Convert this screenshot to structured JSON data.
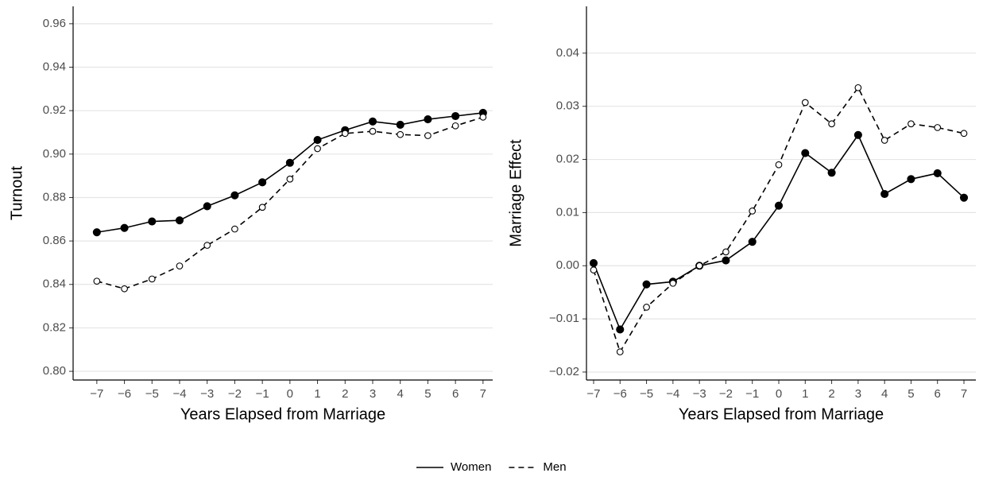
{
  "chart_data": [
    {
      "type": "line",
      "ylabel": "Turnout",
      "xlabel": "Years Elapsed from Marriage",
      "x": [
        -7,
        -6,
        -5,
        -4,
        -3,
        -2,
        -1,
        0,
        1,
        2,
        3,
        4,
        5,
        6,
        7
      ],
      "xlim": [
        -7.86,
        7.35
      ],
      "xticks": [
        {
          "value": -7,
          "label": "−7"
        },
        {
          "value": -6,
          "label": "−6"
        },
        {
          "value": -5,
          "label": "−5"
        },
        {
          "value": -4,
          "label": "−4"
        },
        {
          "value": -3,
          "label": "−3"
        },
        {
          "value": -2,
          "label": "−2"
        },
        {
          "value": -1,
          "label": "−1"
        },
        0,
        1,
        2,
        3,
        4,
        5,
        6,
        7
      ],
      "ylim": [
        0.796,
        0.968
      ],
      "yticks": [
        {
          "value": 0.8,
          "label": "0.80"
        },
        0.82,
        0.84,
        0.86,
        0.88,
        {
          "value": 0.9,
          "label": "0.90"
        },
        0.92,
        0.94,
        0.96
      ],
      "grid": true,
      "series": [
        {
          "name": "Women",
          "color": "#000000",
          "dash": "solid",
          "marker": "filled",
          "values": [
            0.864,
            0.866,
            0.869,
            0.8695,
            0.876,
            0.881,
            0.887,
            0.896,
            0.9065,
            0.911,
            0.915,
            0.9135,
            0.916,
            0.9175,
            0.919
          ]
        },
        {
          "name": "Men",
          "color": "#000000",
          "dash": "dashed",
          "marker": "open",
          "values": [
            0.8415,
            0.838,
            0.8425,
            0.8485,
            0.858,
            0.8655,
            0.8755,
            0.8885,
            0.9025,
            0.9095,
            0.9105,
            0.909,
            0.9085,
            0.913,
            0.917
          ]
        }
      ]
    },
    {
      "type": "line",
      "ylabel": "Marriage Effect",
      "xlabel": "Years Elapsed from Marriage",
      "x": [
        -7,
        -6,
        -5,
        -4,
        -3,
        -2,
        -1,
        0,
        1,
        2,
        3,
        4,
        5,
        6,
        7
      ],
      "xlim": [
        -7.27,
        7.45
      ],
      "xticks": [
        {
          "value": -7,
          "label": "−7"
        },
        {
          "value": -6,
          "label": "−6"
        },
        {
          "value": -5,
          "label": "−5"
        },
        {
          "value": -4,
          "label": "−4"
        },
        {
          "value": -3,
          "label": "−3"
        },
        {
          "value": -2,
          "label": "−2"
        },
        {
          "value": -1,
          "label": "−1"
        },
        0,
        1,
        2,
        3,
        4,
        5,
        6,
        7
      ],
      "ylim": [
        -0.0215,
        0.0488
      ],
      "yticks": [
        {
          "value": -0.02,
          "label": "−0.02"
        },
        {
          "value": -0.01,
          "label": "−0.01"
        },
        {
          "value": 0,
          "label": "0.00"
        },
        0.01,
        0.02,
        0.03,
        0.04
      ],
      "grid": true,
      "series": [
        {
          "name": "Women",
          "color": "#000000",
          "dash": "solid",
          "marker": "filled",
          "values": [
            0.0005,
            -0.012,
            -0.0035,
            -0.003,
            0.0,
            0.001,
            0.0045,
            0.0113,
            0.0212,
            0.0175,
            0.0246,
            0.0135,
            0.0163,
            0.0174,
            0.0128
          ]
        },
        {
          "name": "Men",
          "color": "#000000",
          "dash": "dashed",
          "marker": "open",
          "values": [
            -0.0008,
            -0.0162,
            -0.0078,
            -0.0033,
            0.0,
            0.0026,
            0.0103,
            0.019,
            0.0307,
            0.0267,
            0.0335,
            0.0236,
            0.0267,
            0.026,
            0.0249
          ]
        }
      ]
    }
  ]
}
